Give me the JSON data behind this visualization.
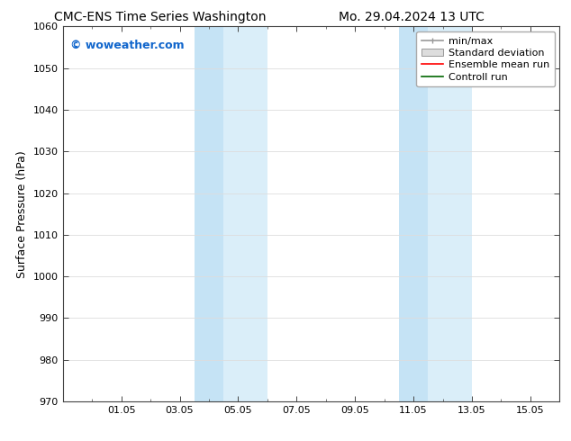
{
  "title_left": "CMC-ENS Time Series Washington",
  "title_right": "Mo. 29.04.2024 13 UTC",
  "ylabel": "Surface Pressure (hPa)",
  "ylim": [
    970,
    1060
  ],
  "yticks": [
    970,
    980,
    990,
    1000,
    1010,
    1020,
    1030,
    1040,
    1050,
    1060
  ],
  "x_min": 0,
  "x_max": 17,
  "xtick_labels": [
    "01.05",
    "03.05",
    "05.05",
    "07.05",
    "09.05",
    "11.05",
    "13.05",
    "15.05"
  ],
  "xtick_positions": [
    2,
    4,
    6,
    8,
    10,
    12,
    14,
    16
  ],
  "band1_x0": 4.5,
  "band1_x1": 7.0,
  "band2_x0": 11.5,
  "band2_x1": 14.0,
  "band_color_light": "#daeef9",
  "band_color_dark": "#c5e3f5",
  "band1_dark_x0": 4.5,
  "band1_dark_x1": 5.5,
  "band1_light_x0": 5.5,
  "band1_light_x1": 7.0,
  "band2_dark_x0": 11.5,
  "band2_dark_x1": 12.5,
  "band2_light_x0": 12.5,
  "band2_light_x1": 14.0,
  "watermark": "© woweather.com",
  "watermark_color": "#1166cc",
  "background_color": "#ffffff",
  "plot_bg_color": "#ffffff",
  "legend_labels": [
    "min/max",
    "Standard deviation",
    "Ensemble mean run",
    "Controll run"
  ],
  "legend_line_color": "#999999",
  "legend_fill_color": "#dddddd",
  "legend_red": "#ff0000",
  "legend_green": "#006600",
  "grid_color": "#dddddd",
  "title_fontsize": 10,
  "watermark_fontsize": 9,
  "ylabel_fontsize": 9,
  "tick_fontsize": 8,
  "legend_fontsize": 8
}
